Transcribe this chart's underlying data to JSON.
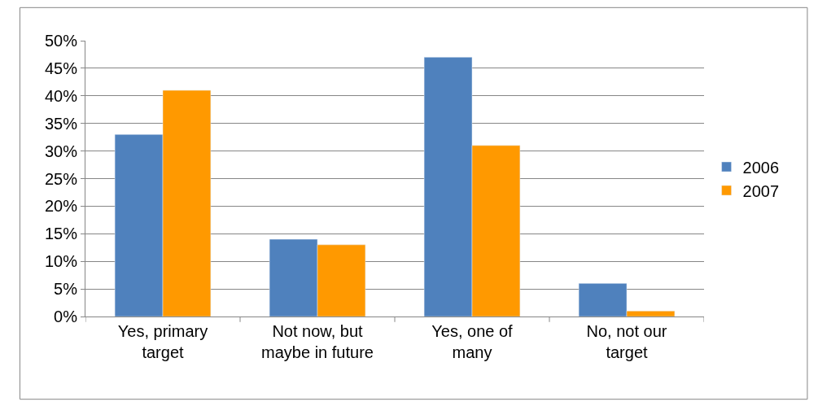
{
  "chart_data": {
    "type": "bar",
    "categories": [
      "Yes, primary target",
      "Not now, but maybe in future",
      "Yes, one of many",
      "No, not our target"
    ],
    "series": [
      {
        "name": "2006",
        "color": "#4f81bd",
        "values": [
          33,
          14,
          47,
          6
        ]
      },
      {
        "name": "2007",
        "color": "#ff9900",
        "values": [
          41,
          13,
          31,
          1
        ]
      }
    ],
    "ylim": [
      0,
      50
    ],
    "yticks": [
      {
        "value": 0,
        "label": "0%"
      },
      {
        "value": 5,
        "label": "5%"
      },
      {
        "value": 10,
        "label": "10%"
      },
      {
        "value": 15,
        "label": "15%"
      },
      {
        "value": 20,
        "label": "20%"
      },
      {
        "value": 25,
        "label": "25%"
      },
      {
        "value": 30,
        "label": "30%"
      },
      {
        "value": 35,
        "label": "35%"
      },
      {
        "value": 40,
        "label": "40%"
      },
      {
        "value": 45,
        "label": "45%"
      },
      {
        "value": 50,
        "label": "50%"
      }
    ],
    "grid": "y",
    "legend": "right"
  }
}
